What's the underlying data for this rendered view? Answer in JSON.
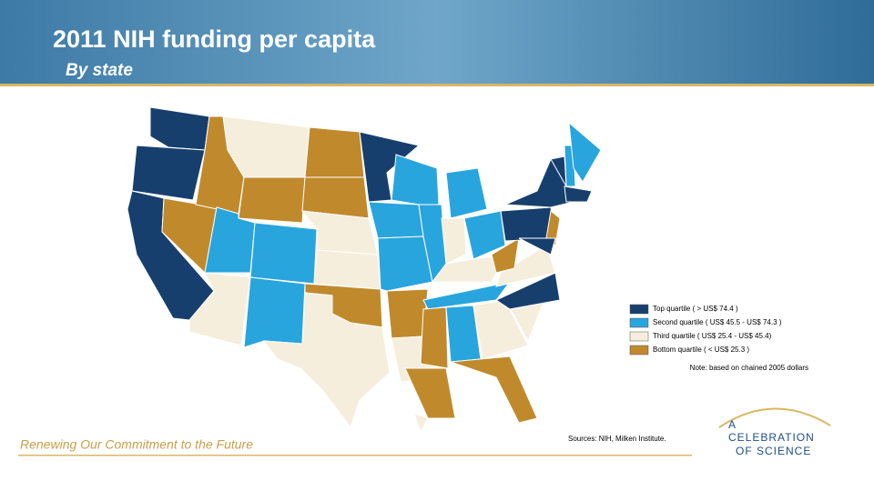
{
  "header": {
    "title": "2011 NIH funding per capita",
    "subtitle": "By state"
  },
  "legend": {
    "items": [
      {
        "label": "Top quartile ( > US$ 74.4 )",
        "color": "#173f6e"
      },
      {
        "label": "Second quartile ( US$ 45.5 - US$ 74.3 )",
        "color": "#29a5de"
      },
      {
        "label": "Third quartile ( US$ 25.4 - US$ 45.4)",
        "color": "#f6eedc"
      },
      {
        "label": "Bottom quartile ( < US$ 25.3 )",
        "color": "#c08a2c"
      }
    ],
    "note": "Note: based on chained 2005 dollars"
  },
  "source": "Sources: NIH, Milken Institute.",
  "footer": {
    "tagline": "Renewing Our Commitment to the Future",
    "logo": [
      "A",
      "CELEBRATION",
      "OF SCIENCE"
    ]
  }
}
